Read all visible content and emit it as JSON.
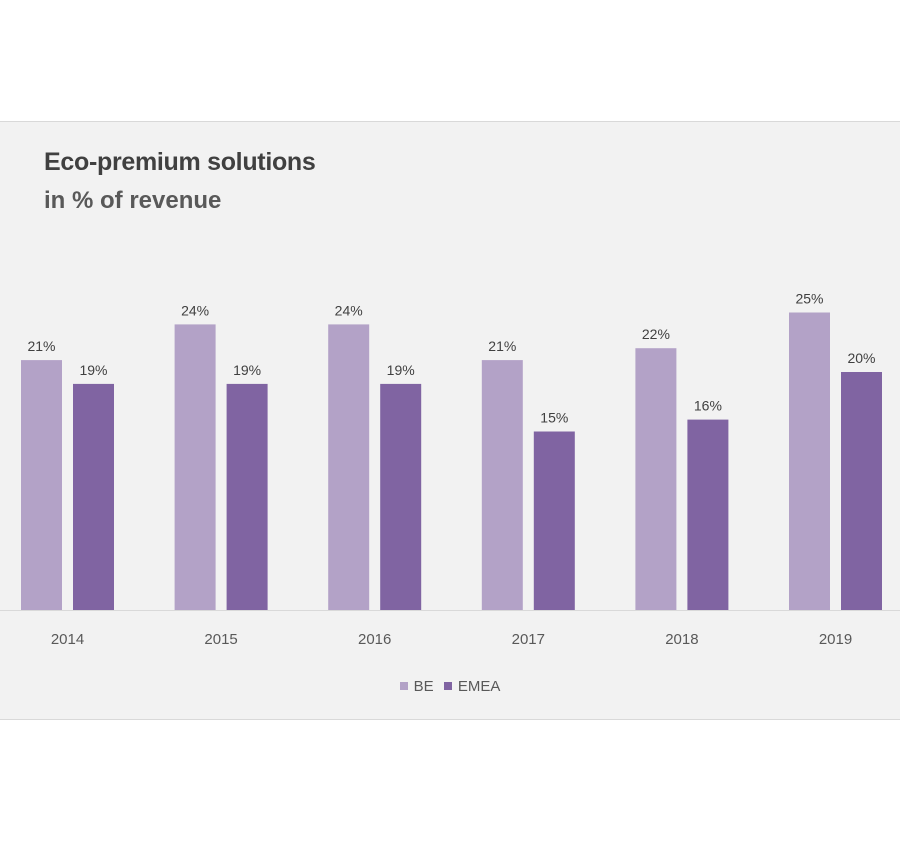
{
  "chart_data": {
    "type": "bar",
    "title": "Eco-premium solutions",
    "subtitle": "in % of revenue",
    "categories": [
      "2014",
      "2015",
      "2016",
      "2017",
      "2018",
      "2019"
    ],
    "series": [
      {
        "name": "BE",
        "color": "#b3a2c7",
        "values": [
          21,
          24,
          24,
          21,
          22,
          25
        ],
        "labels": [
          "21%",
          "24%",
          "24%",
          "21%",
          "22%",
          "25%"
        ]
      },
      {
        "name": "EMEA",
        "color": "#8064a2",
        "values": [
          19,
          19,
          19,
          15,
          16,
          20
        ],
        "labels": [
          "19%",
          "19%",
          "19%",
          "15%",
          "16%",
          "20%"
        ]
      }
    ],
    "xlabel": "",
    "ylabel": "",
    "ylim": [
      0,
      25
    ],
    "grid": false,
    "legend": "bottom-center"
  }
}
